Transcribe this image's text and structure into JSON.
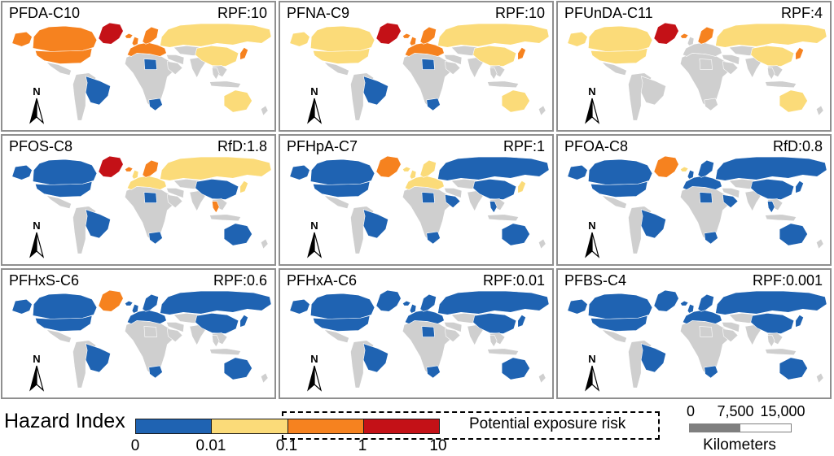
{
  "colors": {
    "blue": "#1F63B2",
    "yellow": "#FBDB79",
    "orange": "#F6821F",
    "red": "#C41117",
    "no_data": "#CFCFCF"
  },
  "figure": {
    "north_label": "N",
    "panels": [
      {
        "compound": "PFDA-C10",
        "factor": "RPF:10",
        "regions": {
          "alaska": "orange",
          "canada": "orange",
          "usa": "orange",
          "greenland": "red",
          "iceland": "orange",
          "brazil": "blue",
          "libya": "blue",
          "southafrica": "blue",
          "europe": "orange",
          "uk": "orange",
          "scandinavia": "orange",
          "russia": "yellow",
          "china": "yellow",
          "japan": "orange",
          "australia": "yellow"
        }
      },
      {
        "compound": "PFNA-C9",
        "factor": "RPF:10",
        "regions": {
          "alaska": "yellow",
          "canada": "yellow",
          "usa": "yellow",
          "greenland": "red",
          "iceland": "orange",
          "brazil": "blue",
          "libya": "blue",
          "southafrica": "blue",
          "europe": "orange",
          "uk": "orange",
          "scandinavia": "orange",
          "russia": "yellow",
          "china": "yellow",
          "japan": "orange",
          "australia": "yellow"
        }
      },
      {
        "compound": "PFUnDA-C11",
        "factor": "RPF:4",
        "regions": {
          "alaska": "yellow",
          "canada": "yellow",
          "usa": "yellow",
          "greenland": "red",
          "iceland": "orange",
          "scandinavia": "orange",
          "russia": "yellow",
          "china": "yellow",
          "japan": "orange",
          "australia": "yellow"
        }
      },
      {
        "compound": "PFOS-C8",
        "factor": "RfD:1.8",
        "regions": {
          "alaska": "blue",
          "canada": "blue",
          "usa": "blue",
          "greenland": "red",
          "iceland": "orange",
          "brazil": "blue",
          "libya": "blue",
          "southafrica": "blue",
          "europe": "yellow",
          "uk": "yellow",
          "scandinavia": "orange",
          "russia": "yellow",
          "china": "blue",
          "thailand": "orange",
          "japan": "yellow",
          "australia": "blue"
        }
      },
      {
        "compound": "PFHpA-C7",
        "factor": "RPF:1",
        "regions": {
          "alaska": "blue",
          "canada": "blue",
          "usa": "blue",
          "greenland": "orange",
          "iceland": "yellow",
          "brazil": "blue",
          "libya": "blue",
          "southafrica": "blue",
          "saudi": "blue",
          "europe": "yellow",
          "uk": "yellow",
          "scandinavia": "yellow",
          "russia": "blue",
          "china": "blue",
          "thailand": "blue",
          "japan": "yellow",
          "australia": "blue"
        }
      },
      {
        "compound": "PFOA-C8",
        "factor": "RfD:0.8",
        "regions": {
          "alaska": "blue",
          "canada": "blue",
          "usa": "blue",
          "greenland": "orange",
          "iceland": "yellow",
          "brazil": "blue",
          "libya": "blue",
          "southafrica": "blue",
          "saudi": "blue",
          "europe": "blue",
          "uk": "blue",
          "scandinavia": "blue",
          "russia": "blue",
          "china": "blue",
          "thailand": "blue",
          "japan": "blue",
          "australia": "blue"
        }
      },
      {
        "compound": "PFHxS-C6",
        "factor": "RPF:0.6",
        "regions": {
          "alaska": "blue",
          "canada": "blue",
          "usa": "blue",
          "greenland": "orange",
          "iceland": "blue",
          "brazil": "blue",
          "southafrica": "blue",
          "europe": "blue",
          "uk": "blue",
          "scandinavia": "blue",
          "russia": "blue",
          "china": "blue",
          "japan": "blue",
          "australia": "blue"
        }
      },
      {
        "compound": "PFHxA-C6",
        "factor": "RPF:0.01",
        "regions": {
          "alaska": "blue",
          "canada": "blue",
          "usa": "blue",
          "greenland": "blue",
          "iceland": "blue",
          "brazil": "blue",
          "libya": "blue",
          "southafrica": "blue",
          "europe": "blue",
          "uk": "blue",
          "scandinavia": "blue",
          "russia": "blue",
          "china": "blue",
          "japan": "blue",
          "australia": "blue"
        }
      },
      {
        "compound": "PFBS-C4",
        "factor": "RPF:0.001",
        "regions": {
          "alaska": "blue",
          "canada": "blue",
          "usa": "blue",
          "greenland": "blue",
          "iceland": "blue",
          "brazil": "blue",
          "southafrica": "blue",
          "europe": "blue",
          "uk": "blue",
          "scandinavia": "blue",
          "russia": "blue",
          "china": "blue",
          "japan": "blue",
          "australia": "blue"
        }
      }
    ]
  },
  "legend": {
    "title": "Hazard Index",
    "ticks": [
      "0",
      "0.01",
      "0.1",
      "1",
      "10"
    ],
    "segments": [
      "blue",
      "yellow",
      "orange",
      "red"
    ],
    "risk_label": "Potential exposure risk"
  },
  "scalebar": {
    "labels": [
      "0",
      "7,500",
      "15,000"
    ],
    "unit": "Kilometers"
  }
}
